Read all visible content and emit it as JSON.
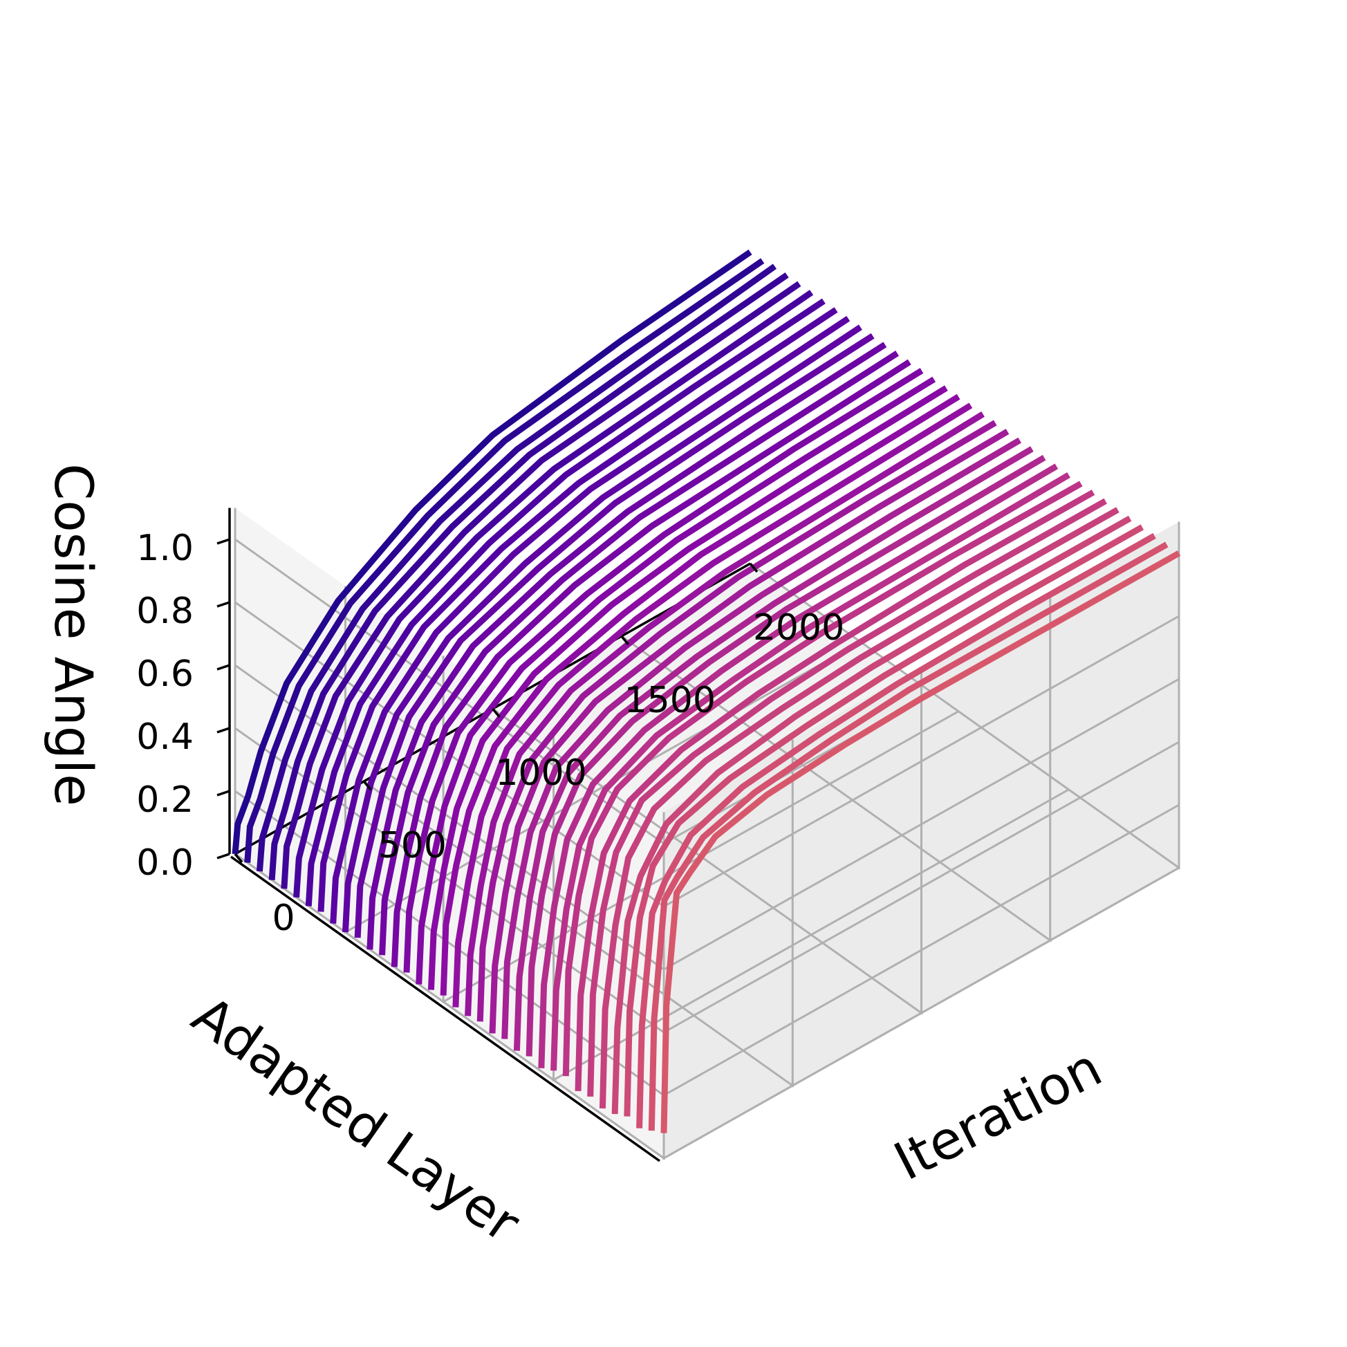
{
  "chart_data": {
    "type": "line",
    "projection": "3d",
    "colormap": "plasma",
    "xlabel": "Iteration",
    "ylabel": "Adapted Layer",
    "zlabel": "Cosine Angle",
    "xticks": [
      "0",
      "500",
      "1000",
      "1500",
      "2000"
    ],
    "zticks": [
      "0.0",
      "0.2",
      "0.4",
      "0.6",
      "0.8",
      "1.0"
    ],
    "xlim": [
      0,
      2000
    ],
    "zlim": [
      0,
      1.1
    ],
    "grid": true,
    "x": [
      0,
      10,
      50,
      100,
      200,
      400,
      700,
      1000,
      1500,
      2000
    ],
    "series_count": 36,
    "series": [
      {
        "values": [
          0.08,
          0.48,
          0.82,
          0.86,
          0.93,
          0.97,
          0.99,
          1.0,
          1.0,
          1.0
        ]
      },
      {
        "values": [
          0.06,
          0.41,
          0.77,
          0.82,
          0.9,
          0.95,
          0.98,
          1.0,
          1.0,
          1.0
        ]
      },
      {
        "values": [
          0.04,
          0.36,
          0.7,
          0.78,
          0.88,
          0.94,
          0.97,
          0.99,
          1.0,
          1.0
        ]
      },
      {
        "values": [
          0.05,
          0.38,
          0.66,
          0.8,
          0.89,
          0.94,
          0.97,
          0.99,
          1.0,
          1.0
        ]
      },
      {
        "values": [
          0.03,
          0.3,
          0.62,
          0.74,
          0.86,
          0.93,
          0.97,
          0.99,
          1.0,
          1.0
        ]
      },
      {
        "values": [
          0.02,
          0.33,
          0.58,
          0.77,
          0.88,
          0.94,
          0.97,
          0.99,
          1.0,
          1.0
        ]
      },
      {
        "values": [
          0.03,
          0.35,
          0.6,
          0.76,
          0.88,
          0.93,
          0.97,
          0.99,
          1.0,
          1.0
        ]
      },
      {
        "values": [
          0.02,
          0.32,
          0.55,
          0.73,
          0.85,
          0.92,
          0.96,
          0.98,
          1.0,
          1.0
        ]
      },
      {
        "values": [
          0.04,
          0.37,
          0.59,
          0.75,
          0.86,
          0.93,
          0.97,
          0.99,
          1.0,
          1.0
        ]
      },
      {
        "values": [
          0.03,
          0.28,
          0.52,
          0.7,
          0.83,
          0.91,
          0.95,
          0.98,
          0.99,
          1.0
        ]
      },
      {
        "values": [
          0.01,
          0.27,
          0.5,
          0.69,
          0.82,
          0.9,
          0.95,
          0.98,
          0.99,
          1.0
        ]
      },
      {
        "values": [
          0.02,
          0.3,
          0.51,
          0.68,
          0.82,
          0.9,
          0.95,
          0.98,
          0.99,
          1.0
        ]
      },
      {
        "values": [
          0.01,
          0.24,
          0.47,
          0.66,
          0.8,
          0.89,
          0.94,
          0.97,
          0.99,
          1.0
        ]
      },
      {
        "values": [
          0.02,
          0.26,
          0.45,
          0.63,
          0.79,
          0.88,
          0.94,
          0.97,
          0.99,
          1.0
        ]
      },
      {
        "values": [
          0.01,
          0.22,
          0.43,
          0.62,
          0.78,
          0.88,
          0.93,
          0.97,
          0.99,
          1.0
        ]
      },
      {
        "values": [
          0.02,
          0.25,
          0.44,
          0.6,
          0.76,
          0.87,
          0.93,
          0.97,
          0.99,
          1.0
        ]
      },
      {
        "values": [
          0.01,
          0.2,
          0.4,
          0.58,
          0.75,
          0.86,
          0.92,
          0.96,
          0.98,
          1.0
        ]
      },
      {
        "values": [
          0.01,
          0.21,
          0.39,
          0.57,
          0.74,
          0.85,
          0.92,
          0.96,
          0.98,
          1.0
        ]
      },
      {
        "values": [
          0.02,
          0.24,
          0.41,
          0.56,
          0.72,
          0.84,
          0.91,
          0.96,
          0.98,
          1.0
        ]
      },
      {
        "values": [
          0.01,
          0.19,
          0.37,
          0.54,
          0.71,
          0.83,
          0.91,
          0.95,
          0.98,
          1.0
        ]
      },
      {
        "values": [
          0.0,
          0.18,
          0.35,
          0.52,
          0.7,
          0.82,
          0.9,
          0.95,
          0.98,
          1.0
        ]
      },
      {
        "values": [
          0.01,
          0.2,
          0.36,
          0.51,
          0.68,
          0.81,
          0.89,
          0.94,
          0.98,
          1.0
        ]
      },
      {
        "values": [
          0.0,
          0.17,
          0.33,
          0.49,
          0.67,
          0.8,
          0.89,
          0.94,
          0.97,
          1.0
        ]
      },
      {
        "values": [
          0.01,
          0.18,
          0.32,
          0.48,
          0.65,
          0.79,
          0.88,
          0.94,
          0.97,
          1.0
        ]
      },
      {
        "values": [
          0.0,
          0.16,
          0.3,
          0.46,
          0.63,
          0.78,
          0.87,
          0.93,
          0.97,
          1.0
        ]
      },
      {
        "values": [
          0.01,
          0.17,
          0.29,
          0.44,
          0.62,
          0.77,
          0.86,
          0.93,
          0.97,
          1.0
        ]
      },
      {
        "values": [
          0.0,
          0.15,
          0.28,
          0.43,
          0.6,
          0.75,
          0.85,
          0.92,
          0.96,
          1.0
        ]
      },
      {
        "values": [
          0.0,
          0.14,
          0.26,
          0.41,
          0.58,
          0.74,
          0.85,
          0.92,
          0.96,
          1.0
        ]
      },
      {
        "values": [
          0.01,
          0.16,
          0.27,
          0.4,
          0.57,
          0.73,
          0.84,
          0.91,
          0.96,
          1.0
        ]
      },
      {
        "values": [
          0.0,
          0.13,
          0.24,
          0.38,
          0.55,
          0.71,
          0.83,
          0.91,
          0.96,
          1.0
        ]
      },
      {
        "values": [
          0.0,
          0.12,
          0.23,
          0.36,
          0.53,
          0.7,
          0.82,
          0.9,
          0.95,
          1.0
        ]
      },
      {
        "values": [
          0.0,
          0.13,
          0.22,
          0.35,
          0.52,
          0.68,
          0.81,
          0.9,
          0.95,
          1.0
        ]
      },
      {
        "values": [
          0.0,
          0.11,
          0.2,
          0.33,
          0.5,
          0.67,
          0.8,
          0.89,
          0.95,
          1.0
        ]
      },
      {
        "values": [
          0.0,
          0.1,
          0.19,
          0.31,
          0.48,
          0.65,
          0.79,
          0.88,
          0.94,
          1.0
        ]
      },
      {
        "values": [
          0.0,
          0.11,
          0.18,
          0.3,
          0.47,
          0.64,
          0.78,
          0.88,
          0.94,
          0.99
        ]
      },
      {
        "values": [
          0.0,
          0.09,
          0.16,
          0.28,
          0.45,
          0.62,
          0.77,
          0.87,
          0.94,
          0.99
        ]
      }
    ]
  }
}
